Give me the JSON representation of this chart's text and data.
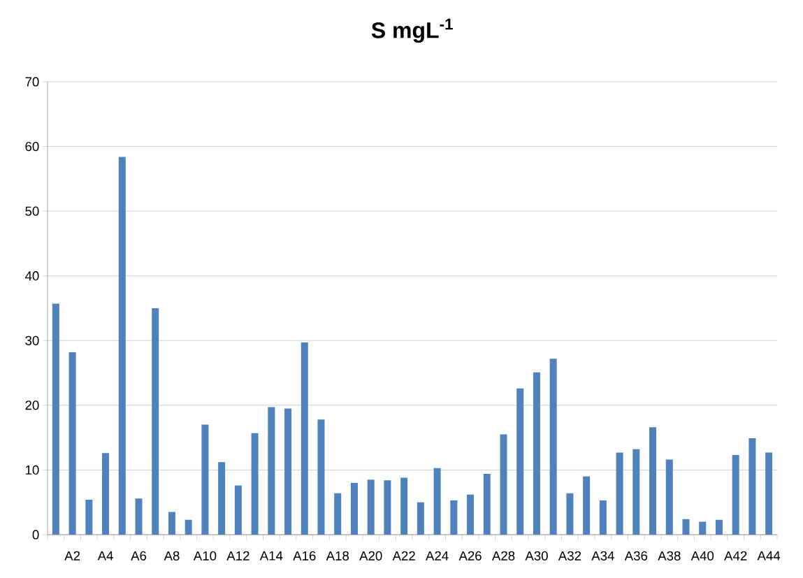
{
  "chart_data": {
    "type": "bar",
    "title": "**S mgL$^{-1}$**",
    "categories": [
      null,
      "A2",
      null,
      "A4",
      null,
      "A6",
      null,
      "A8",
      null,
      "A10",
      null,
      "A12",
      null,
      "A14",
      null,
      "A16",
      null,
      "A18",
      null,
      "A20",
      null,
      "A22",
      null,
      "A24",
      null,
      "A26",
      null,
      "A28",
      null,
      "A30",
      null,
      "A32",
      null,
      "A34",
      null,
      "A36",
      null,
      "A38",
      null,
      "A40",
      null,
      "A42",
      null,
      "A44"
    ],
    "values": [
      35.7,
      28.2,
      5.4,
      12.6,
      58.4,
      5.6,
      35.0,
      3.5,
      2.3,
      17.0,
      11.2,
      7.6,
      15.7,
      19.7,
      19.5,
      29.7,
      17.8,
      6.4,
      8.0,
      8.5,
      8.4,
      8.8,
      5.0,
      10.3,
      5.3,
      6.2,
      9.4,
      15.5,
      22.6,
      25.1,
      27.2,
      6.4,
      9.0,
      5.3,
      12.7,
      13.2,
      16.6,
      11.6,
      2.4,
      2.0,
      2.3,
      12.3,
      14.9,
      12.7
    ],
    "color": "#4f81bd",
    "ylim": [
      0,
      70
    ],
    "yticks": [
      0,
      10,
      20,
      30,
      40,
      50,
      60,
      70
    ],
    "grid": "y"
  }
}
